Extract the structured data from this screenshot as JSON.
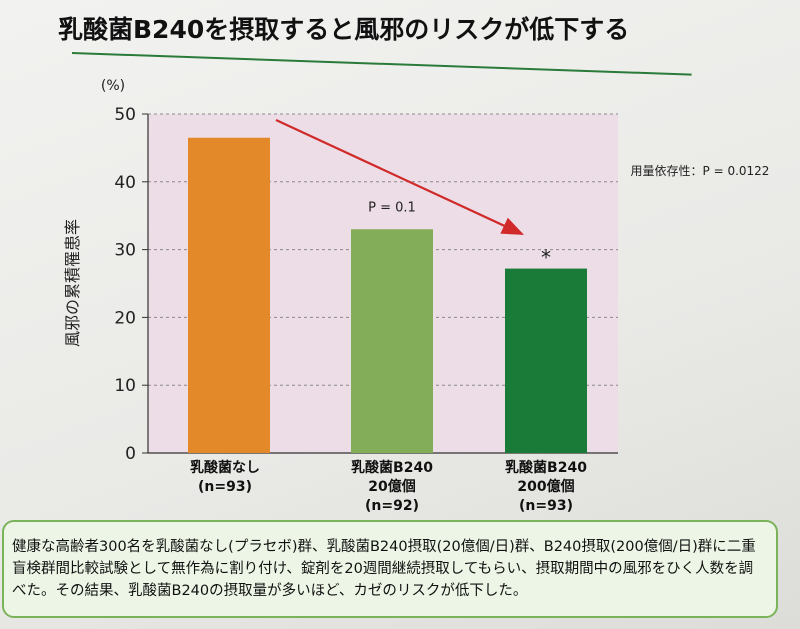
{
  "title": {
    "line1": "乳酸菌B240を摂取すると風邪のリスクが低下する"
  },
  "chart_data": {
    "type": "bar",
    "categories": [
      [
        "乳酸菌なし",
        "(n=93)"
      ],
      [
        "乳酸菌B240",
        "20億個",
        "(n=92)"
      ],
      [
        "乳酸菌B240",
        "200億個",
        "(n=93)"
      ]
    ],
    "values": [
      46.5,
      33.0,
      27.2
    ],
    "bar_colors": [
      "#e4892a",
      "#84ad5a",
      "#1a7a38"
    ],
    "ylabel": "風邪の累積罹患率",
    "yunit": "(%)",
    "ylim": [
      0,
      50
    ],
    "yticks": [
      "0",
      "10",
      "20",
      "30",
      "40",
      "50"
    ],
    "grid": true,
    "plot_bg": "#ecdde6",
    "annotations": {
      "p_value": "P = 0.1",
      "significance": "*",
      "trend": "用量依存性：P = 0.0122"
    },
    "trend_arrow_color": "#d02a2a"
  },
  "note": "健康な高齢者300名を乳酸菌なし(プラセボ)群、乳酸菌B240摂取(20億個/日)群、B240摂取(200億個/日)群に二重盲検群間比較試験として無作為に割り付け、錠剤を20週間継続摂取してもらい、摂取期間中の風邪をひく人数を調べた。その結果、乳酸菌B240の摂取量が多いほど、カゼのリスクが低下した。",
  "footnote": "",
  "colors": {
    "accent_green": "#7bb35a",
    "title_rule": "#2a7a3a"
  }
}
